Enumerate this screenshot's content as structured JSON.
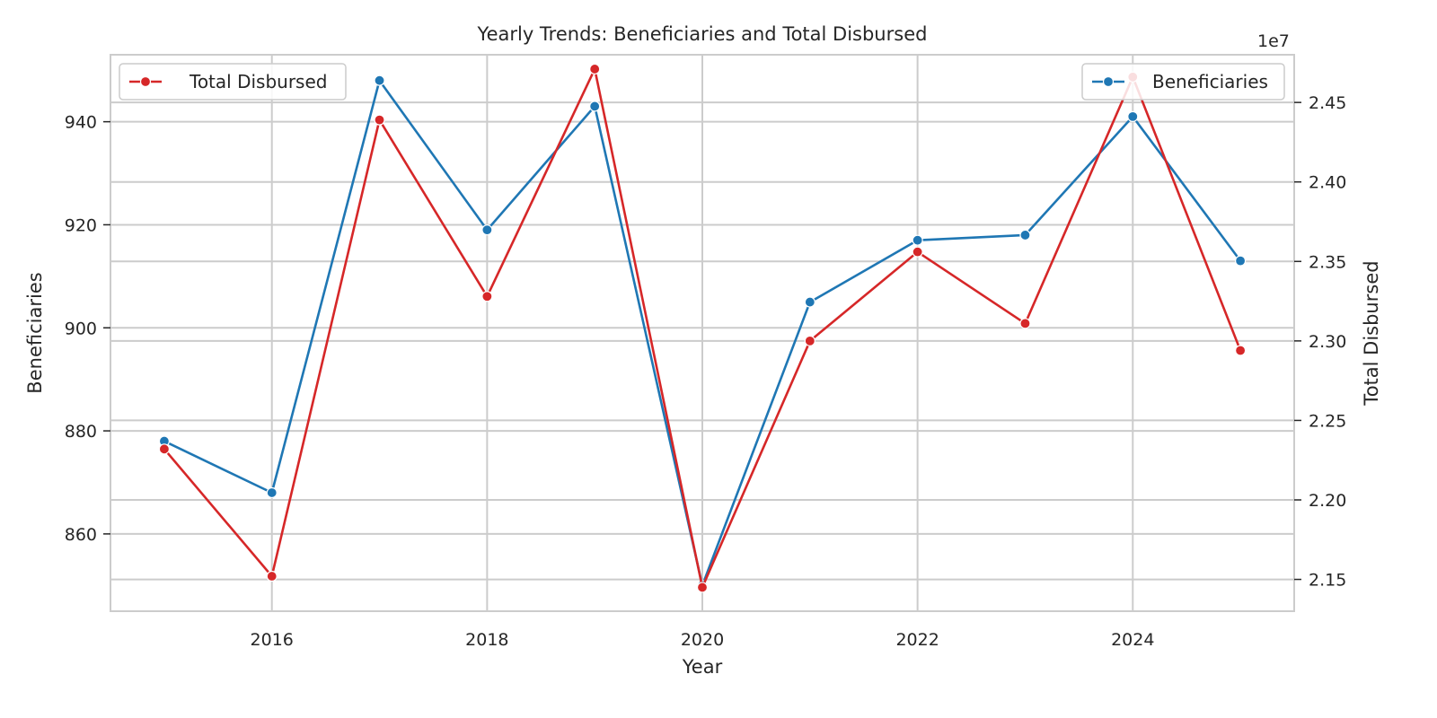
{
  "chart_data": {
    "type": "line",
    "title": "Yearly Trends: Beneficiaries and Total Disbursed",
    "xlabel": "Year",
    "ylabel_left": "Beneficiaries",
    "ylabel_right": "Total Disbursed",
    "right_axis_exponent": "1e7",
    "grid": true,
    "x": [
      2015,
      2016,
      2017,
      2018,
      2019,
      2020,
      2021,
      2022,
      2023,
      2024,
      2025
    ],
    "x_ticks": [
      2016,
      2018,
      2020,
      2022,
      2024
    ],
    "xlim": [
      2014.5,
      2025.5
    ],
    "ylim_left": [
      845,
      953
    ],
    "y_ticks_left": [
      860,
      880,
      900,
      920,
      940
    ],
    "ylim_right": [
      2.13,
      2.48
    ],
    "y_ticks_right": [
      2.15,
      2.2,
      2.25,
      2.3,
      2.35,
      2.4,
      2.45
    ],
    "series": [
      {
        "name": "Beneficiaries",
        "axis": "left",
        "color": "#1f77b4",
        "values": [
          878,
          868,
          948,
          919,
          943,
          850,
          905,
          917,
          918,
          941,
          913
        ],
        "legend_position": "top-right"
      },
      {
        "name": "Total Disbursed",
        "axis": "right",
        "color": "#d62728",
        "values": [
          2.232,
          2.152,
          2.439,
          2.328,
          2.471,
          2.145,
          2.3,
          2.356,
          2.311,
          2.466,
          2.294
        ],
        "legend_position": "top-left"
      }
    ]
  }
}
